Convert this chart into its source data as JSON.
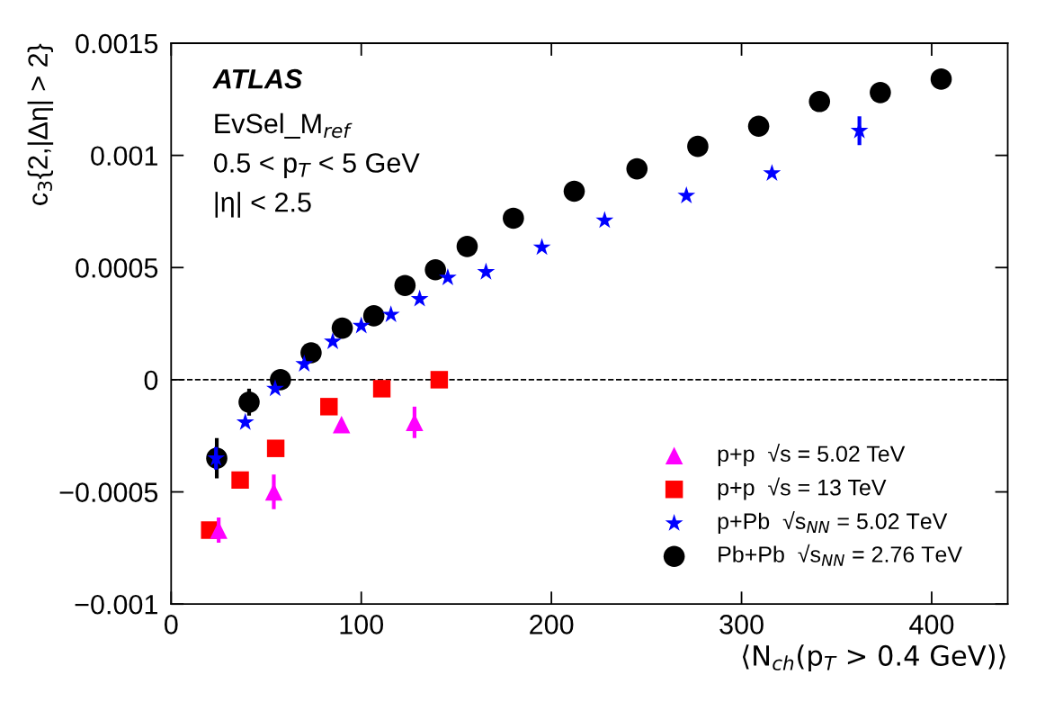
{
  "chart_data": {
    "type": "scatter",
    "xlabel": "⟨N$_{ch}$(p$_{T}$ > 0.4 GeV)⟩",
    "ylabel": "c$_{3}${2,|Δη| > 2}",
    "xlim": [
      0,
      440
    ],
    "xticks": [
      0,
      100,
      200,
      300,
      400
    ],
    "ylim": [
      -0.001,
      0.0015
    ],
    "yticks": [
      {
        "value": -0.001,
        "label": "−0.001"
      },
      {
        "value": -0.0005,
        "label": "−0.0005"
      },
      {
        "value": 0,
        "label": "0"
      },
      {
        "value": 0.0005,
        "label": "0.0005"
      },
      {
        "value": 0.001,
        "label": "0.001"
      },
      {
        "value": 0.0015,
        "label": "0.0015"
      }
    ],
    "annotations": [
      "ATLAS",
      "EvSel_M$_{ref}$",
      "0.5 < p$_{T}$ < 5 GeV",
      "|η| < 2.5"
    ],
    "ref_lines": [
      {
        "axis": "y",
        "value": 0,
        "color": "#000000",
        "line_style": "dashed"
      }
    ],
    "legend": "bottom right",
    "grid": false,
    "series": [
      {
        "name": "p+p  √s = 5.02 TeV",
        "color": "#ff00ff",
        "marker": "triangle",
        "x": [
          25,
          54,
          89.6,
          128
        ],
        "values": [
          -0.00067,
          -0.0005,
          -0.0002,
          -0.00019
        ],
        "errors": [
          5.6e-05,
          7.7e-05,
          null,
          7e-05
        ]
      },
      {
        "name": "p+p  √s = 13 TeV",
        "color": "#ff0000",
        "marker": "square",
        "x": [
          20.3,
          36.3,
          55,
          83,
          110.8,
          141
        ],
        "values": [
          -0.00067,
          -0.000447,
          -0.000306,
          -0.00012,
          -4e-05,
          0.0
        ]
      },
      {
        "name": "p+Pb  √s$_{NN}$ = 5.02 TeV",
        "color": "#0000ff",
        "marker": "star",
        "x": [
          23.6,
          39,
          54.7,
          70,
          85,
          100,
          115.6,
          130.7,
          145.5,
          165.6,
          195,
          228,
          271,
          316,
          362
        ],
        "values": [
          -0.00035,
          -0.00019,
          -4e-05,
          7e-05,
          0.00017,
          0.00024,
          0.00029,
          0.00036,
          0.000455,
          0.00048,
          0.00059,
          0.00071,
          0.00082,
          0.00092,
          0.00111
        ],
        "errors": [
          5e-05,
          null,
          null,
          null,
          null,
          null,
          null,
          null,
          null,
          null,
          null,
          null,
          null,
          null,
          6.4e-05
        ]
      },
      {
        "name": "Pb+Pb  √s$_{NN}$ = 2.76 TeV",
        "color": "#000000",
        "marker": "circle",
        "x": [
          24,
          41,
          57.5,
          73.6,
          90,
          106.6,
          123,
          139,
          155.7,
          180,
          212,
          245,
          277,
          309,
          341,
          373,
          405
        ],
        "values": [
          -0.00035,
          -0.0001,
          0.0,
          0.00012,
          0.00023,
          0.000285,
          0.00042,
          0.00049,
          0.000594,
          0.00072,
          0.00084,
          0.00094,
          0.00104,
          0.00113,
          0.00124,
          0.00128,
          0.00134
        ],
        "errors": [
          9e-05,
          6e-05,
          4e-05,
          4e-05,
          null,
          null,
          null,
          null,
          null,
          null,
          null,
          null,
          null,
          null,
          null,
          null,
          null
        ]
      }
    ]
  }
}
